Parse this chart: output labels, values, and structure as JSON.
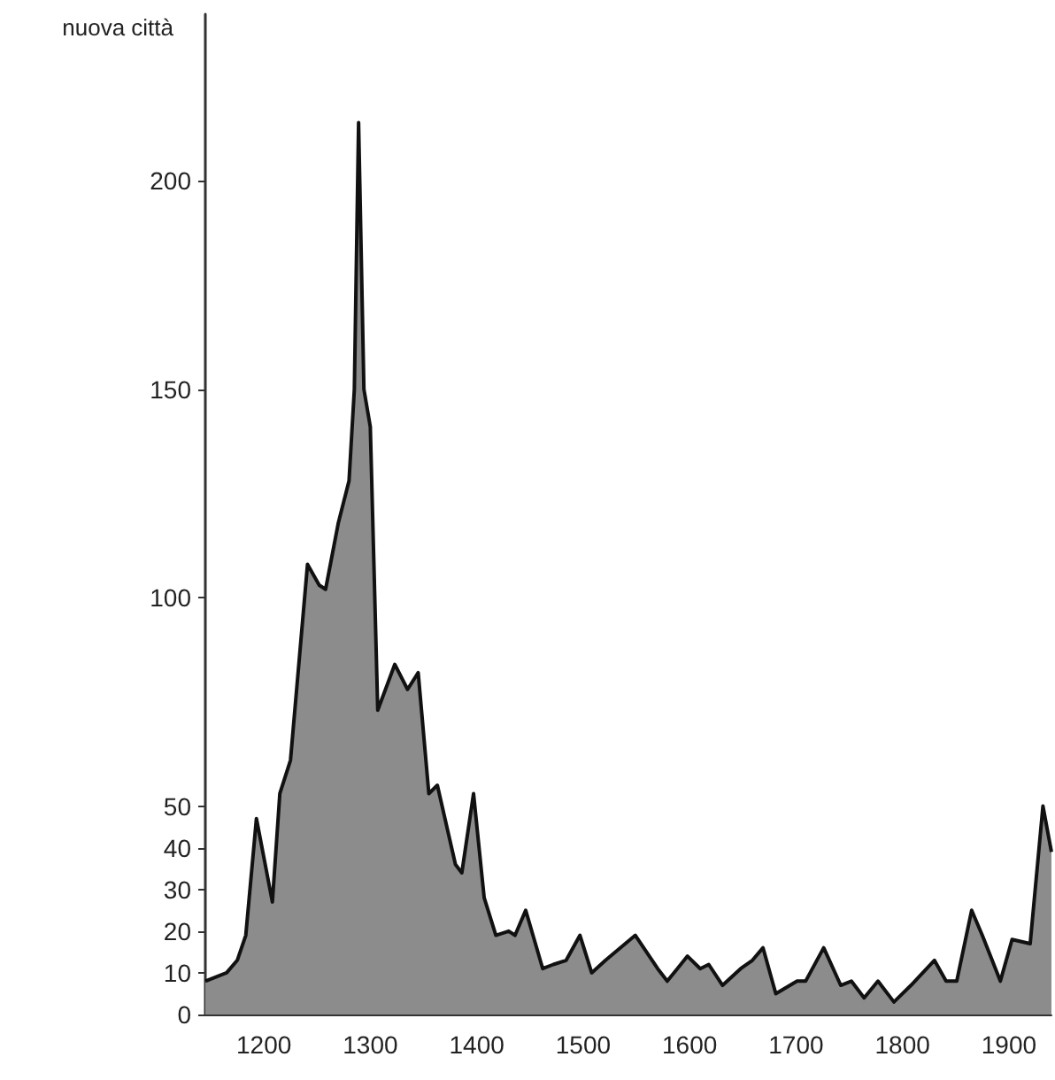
{
  "chart_data": {
    "type": "area",
    "ylabel": "nuova città",
    "xlim": [
      1145,
      1940
    ],
    "xticks": [
      1200,
      1300,
      1400,
      1500,
      1600,
      1700,
      1800,
      1900
    ],
    "ylim": [
      0,
      240
    ],
    "yticks": [
      0,
      10,
      20,
      30,
      40,
      50,
      100,
      150,
      200
    ],
    "marker": "none",
    "series": [
      {
        "color": "#8c8c8c",
        "x": [
          1145,
          1165,
          1175,
          1183,
          1193,
          1208,
          1215,
          1225,
          1241,
          1252,
          1258,
          1270,
          1280,
          1285,
          1289,
          1294,
          1300,
          1307,
          1323,
          1335,
          1345,
          1355,
          1363,
          1380,
          1386,
          1397,
          1407,
          1418,
          1430,
          1436,
          1446,
          1462,
          1472,
          1484,
          1497,
          1508,
          1521,
          1549,
          1570,
          1579,
          1598,
          1610,
          1618,
          1631,
          1648,
          1659,
          1669,
          1681,
          1701,
          1709,
          1726,
          1742,
          1752,
          1764,
          1777,
          1792,
          1808,
          1830,
          1841,
          1851,
          1865,
          1875,
          1892,
          1903,
          1920,
          1932,
          1940
        ],
        "values": [
          8,
          10,
          13,
          19,
          47,
          27,
          53,
          61,
          108,
          103,
          102,
          118,
          128,
          150,
          214,
          150,
          141,
          73,
          84,
          78,
          82,
          53,
          55,
          36,
          34,
          53,
          28,
          19,
          20,
          19,
          25,
          11,
          12,
          13,
          19,
          10,
          13,
          19,
          11,
          8,
          14,
          11,
          12,
          7,
          11,
          13,
          16,
          5,
          8,
          8,
          16,
          7,
          8,
          4,
          8,
          3,
          7,
          13,
          8,
          8,
          25,
          19,
          8,
          18,
          17,
          50,
          39
        ]
      }
    ]
  }
}
